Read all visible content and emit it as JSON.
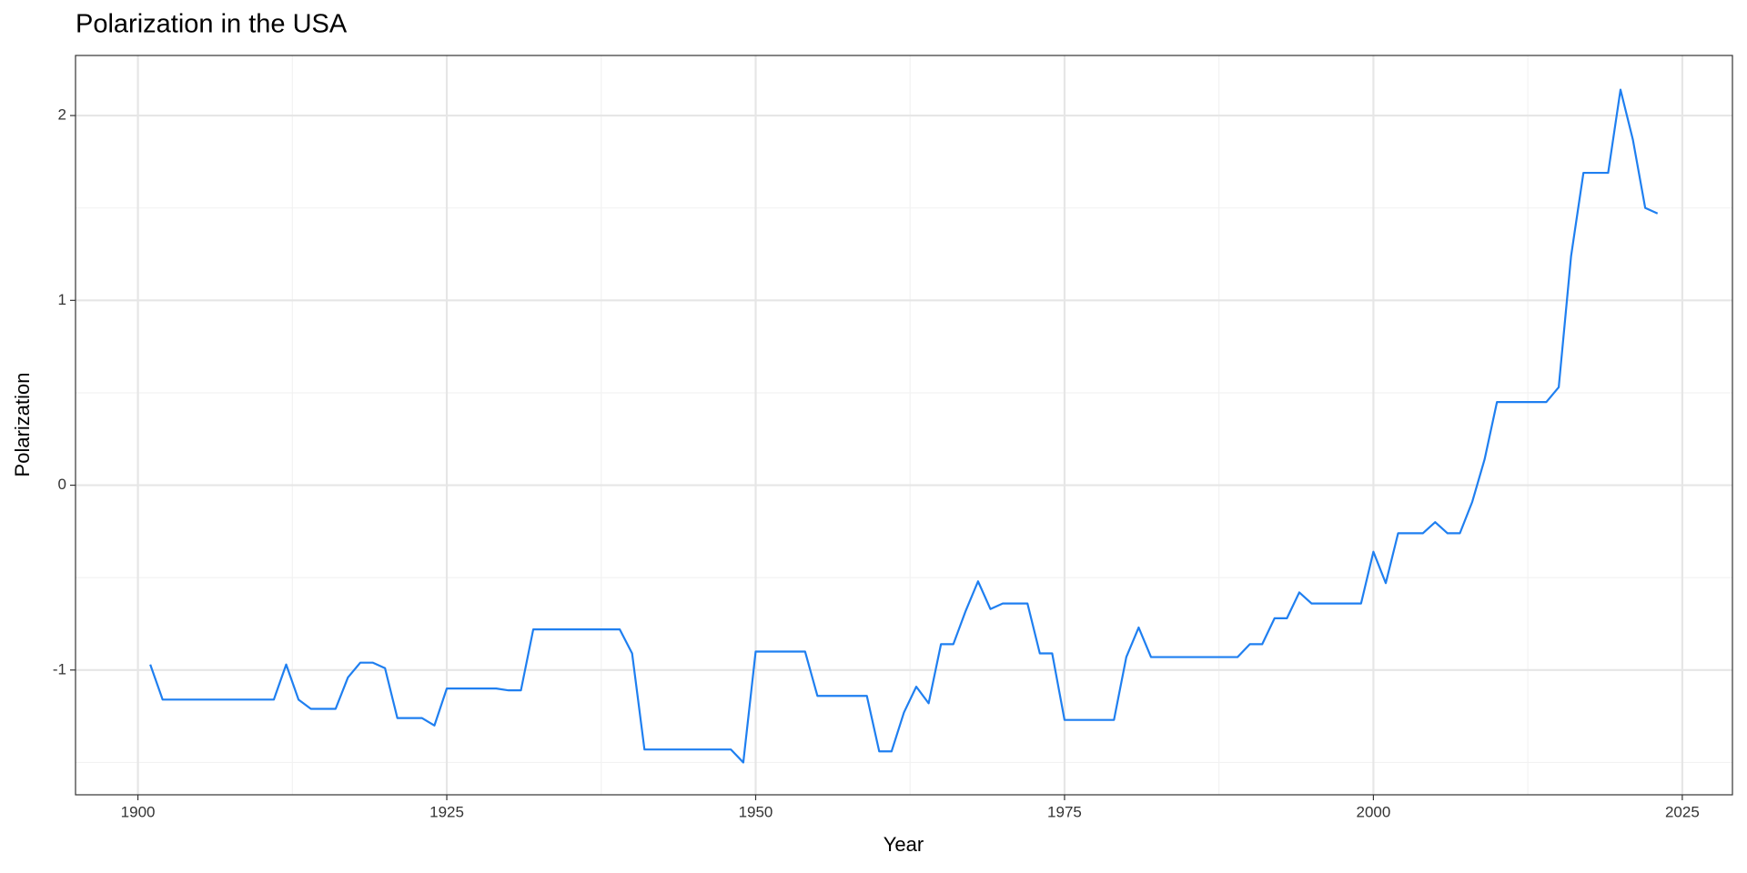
{
  "chart_data": {
    "type": "line",
    "title": "Polarization in the USA",
    "xlabel": "Year",
    "ylabel": "Polarization",
    "color": "#1f7ff0",
    "x": [
      1901,
      1902,
      1903,
      1904,
      1905,
      1906,
      1907,
      1908,
      1909,
      1910,
      1911,
      1912,
      1913,
      1914,
      1915,
      1916,
      1917,
      1918,
      1919,
      1920,
      1921,
      1922,
      1923,
      1924,
      1925,
      1926,
      1927,
      1928,
      1929,
      1930,
      1931,
      1932,
      1933,
      1934,
      1935,
      1936,
      1937,
      1938,
      1939,
      1940,
      1941,
      1942,
      1943,
      1944,
      1945,
      1946,
      1947,
      1948,
      1949,
      1950,
      1951,
      1952,
      1953,
      1954,
      1955,
      1956,
      1957,
      1958,
      1959,
      1960,
      1961,
      1962,
      1963,
      1964,
      1965,
      1966,
      1967,
      1968,
      1969,
      1970,
      1971,
      1972,
      1973,
      1974,
      1975,
      1976,
      1977,
      1978,
      1979,
      1980,
      1981,
      1982,
      1983,
      1984,
      1985,
      1986,
      1987,
      1988,
      1989,
      1990,
      1991,
      1992,
      1993,
      1994,
      1995,
      1996,
      1997,
      1998,
      1999,
      2000,
      2001,
      2002,
      2003,
      2004,
      2005,
      2006,
      2007,
      2008,
      2009,
      2010,
      2011,
      2012,
      2013,
      2014,
      2015,
      2016,
      2017,
      2018,
      2019,
      2020,
      2021,
      2022,
      2023
    ],
    "values": [
      -0.97,
      -1.16,
      -1.16,
      -1.16,
      -1.16,
      -1.16,
      -1.16,
      -1.16,
      -1.16,
      -1.16,
      -1.16,
      -0.97,
      -1.16,
      -1.21,
      -1.21,
      -1.21,
      -1.04,
      -0.96,
      -0.96,
      -0.99,
      -1.26,
      -1.26,
      -1.26,
      -1.3,
      -1.1,
      -1.1,
      -1.1,
      -1.1,
      -1.1,
      -1.11,
      -1.11,
      -0.78,
      -0.78,
      -0.78,
      -0.78,
      -0.78,
      -0.78,
      -0.78,
      -0.78,
      -0.91,
      -1.43,
      -1.43,
      -1.43,
      -1.43,
      -1.43,
      -1.43,
      -1.43,
      -1.43,
      -1.5,
      -0.9,
      -0.9,
      -0.9,
      -0.9,
      -0.9,
      -1.14,
      -1.14,
      -1.14,
      -1.14,
      -1.14,
      -1.44,
      -1.44,
      -1.23,
      -1.09,
      -1.18,
      -0.86,
      -0.86,
      -0.68,
      -0.52,
      -0.67,
      -0.64,
      -0.64,
      -0.64,
      -0.91,
      -0.91,
      -1.27,
      -1.27,
      -1.27,
      -1.27,
      -1.27,
      -0.93,
      -0.77,
      -0.93,
      -0.93,
      -0.93,
      -0.93,
      -0.93,
      -0.93,
      -0.93,
      -0.93,
      -0.86,
      -0.86,
      -0.72,
      -0.72,
      -0.58,
      -0.64,
      -0.64,
      -0.64,
      -0.64,
      -0.64,
      -0.36,
      -0.53,
      -0.26,
      -0.26,
      -0.26,
      -0.2,
      -0.26,
      -0.26,
      -0.09,
      0.14,
      0.45,
      0.45,
      0.45,
      0.45,
      0.45,
      0.53,
      1.24,
      1.69,
      1.69,
      1.69,
      2.14,
      1.87,
      1.5,
      1.47
    ],
    "xlim": [
      1894.95,
      2029.06
    ],
    "xticks": [
      1900,
      1925,
      1950,
      1975,
      2000,
      2025
    ],
    "xminorticks": [
      1912.5,
      1937.5,
      1962.5,
      1987.5,
      2012.5
    ],
    "ylim": [
      -1.675,
      2.325
    ],
    "yticks": [
      -1,
      0,
      1,
      2
    ],
    "yminorticks": [
      -1.5,
      -0.5,
      0.5,
      1.5
    ],
    "grid": true
  }
}
